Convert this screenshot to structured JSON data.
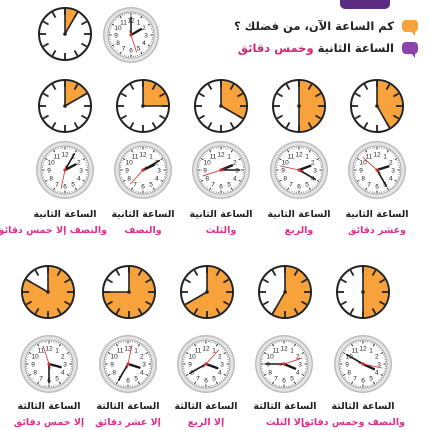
{
  "questions": {
    "question_text": "كم الساعة الآن، من فضلك ؟",
    "answer_prefix": "الساعة الثانية",
    "answer_highlight": "وخمس دقائق"
  },
  "colors": {
    "orange": "#f7a23b",
    "purple": "#8e44ad",
    "caption_pink": "#e0308a",
    "clock_rim": "#c9c9c9",
    "tab": "#5a2d82"
  },
  "row1_fractions": [
    0.083,
    0
  ],
  "row2_fractions": [
    0.167,
    0.25,
    0.333,
    0.5,
    0.417
  ],
  "row4_fractions": [
    0.833,
    0.75,
    0.667,
    0.583,
    0.5
  ],
  "row3_times": [
    {
      "h": 2,
      "m": 5
    },
    {
      "h": 2,
      "m": 10
    },
    {
      "h": 2,
      "m": 15
    },
    {
      "h": 2,
      "m": 20
    },
    {
      "h": 2,
      "m": 25
    }
  ],
  "row5_times": [
    {
      "h": 3,
      "m": 30
    },
    {
      "h": 3,
      "m": 35
    },
    {
      "h": 3,
      "m": 40
    },
    {
      "h": 3,
      "m": 45
    },
    {
      "h": 3,
      "m": 50
    }
  ],
  "captions_row1": [
    {
      "line1": "الساعة الثانية",
      "line2": "وعشر دقائق"
    },
    {
      "line1": "الساعة الثانية",
      "line2": "والربع"
    },
    {
      "line1": "الساعة الثانية",
      "line2": "والثلث"
    },
    {
      "line1": "الساعة الثانية",
      "line2": "والنصف"
    },
    {
      "line1": "الساعة الثانية",
      "line2": "والنصف إلا خمس دقائق"
    }
  ],
  "captions_row2": [
    {
      "line1": "الساعة الثالثة",
      "line2": "والنصف وخمس دقائق"
    },
    {
      "line1": "الساعة الثالثة",
      "line2": "إلا الثلث"
    },
    {
      "line1": "الساعة الثالثة",
      "line2": "إلا الربع"
    },
    {
      "line1": "الساعة الثالثة",
      "line2": "إلا عشر دقائق"
    },
    {
      "line1": "الساعة الثالثة",
      "line2": "إلا خمس دقائق"
    }
  ]
}
